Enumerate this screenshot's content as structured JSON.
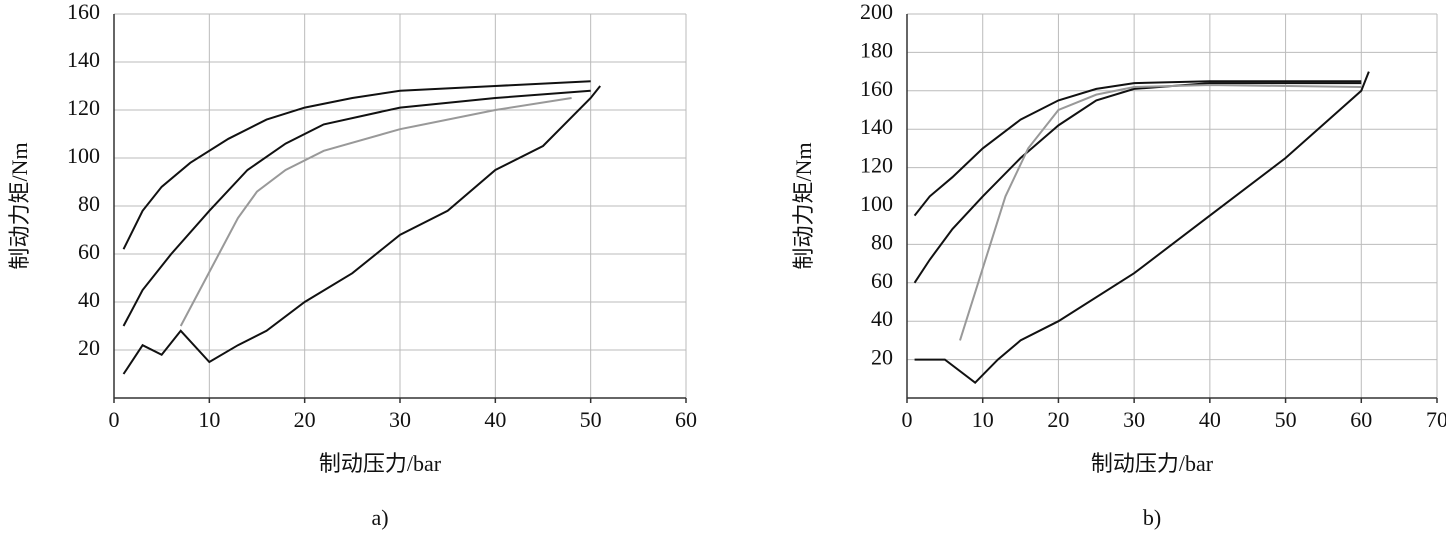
{
  "chart_data": [
    {
      "type": "line",
      "x_label": "制动压力/bar",
      "y_label": "制动力矩/Nm",
      "caption": "a)",
      "xlim": [
        0,
        60
      ],
      "ylim": [
        0,
        160
      ],
      "xticks": [
        0,
        10,
        20,
        30,
        40,
        50,
        60
      ],
      "yticks": [
        20,
        40,
        60,
        80,
        100,
        120,
        140,
        160
      ],
      "grid": true,
      "series": [
        {
          "color": "#111111",
          "x": [
            1,
            3,
            5,
            8,
            12,
            16,
            20,
            25,
            30,
            40,
            50
          ],
          "values": [
            62,
            78,
            88,
            98,
            108,
            116,
            121,
            125,
            128,
            130,
            132
          ]
        },
        {
          "color": "#111111",
          "x": [
            1,
            3,
            6,
            10,
            14,
            18,
            22,
            30,
            40,
            50
          ],
          "values": [
            30,
            45,
            60,
            78,
            95,
            106,
            114,
            121,
            125,
            128
          ]
        },
        {
          "color": "#999999",
          "x": [
            7,
            9,
            11,
            13,
            15,
            18,
            22,
            30,
            40,
            48
          ],
          "values": [
            30,
            45,
            60,
            75,
            86,
            95,
            103,
            112,
            120,
            125
          ]
        },
        {
          "color": "#111111",
          "x": [
            1,
            3,
            5,
            7,
            10,
            13,
            16,
            20,
            25,
            30,
            35,
            40,
            45,
            50,
            51
          ],
          "values": [
            10,
            22,
            18,
            28,
            15,
            22,
            28,
            40,
            52,
            68,
            78,
            95,
            105,
            125,
            130
          ]
        }
      ]
    },
    {
      "type": "line",
      "x_label": "制动压力/bar",
      "y_label": "制动力矩/Nm",
      "caption": "b)",
      "xlim": [
        0,
        70
      ],
      "ylim": [
        0,
        200
      ],
      "xticks": [
        0,
        10,
        20,
        30,
        40,
        50,
        60,
        70
      ],
      "yticks": [
        20,
        40,
        60,
        80,
        100,
        120,
        140,
        160,
        180,
        200
      ],
      "grid": true,
      "series": [
        {
          "color": "#111111",
          "x": [
            1,
            3,
            6,
            10,
            15,
            20,
            25,
            30,
            40,
            60
          ],
          "values": [
            95,
            105,
            115,
            130,
            145,
            155,
            161,
            164,
            165,
            165
          ]
        },
        {
          "color": "#111111",
          "x": [
            1,
            3,
            6,
            10,
            15,
            20,
            25,
            30,
            40,
            60
          ],
          "values": [
            60,
            72,
            88,
            105,
            125,
            142,
            155,
            161,
            164,
            164
          ]
        },
        {
          "color": "#999999",
          "x": [
            7,
            9,
            11,
            13,
            16,
            20,
            25,
            30,
            40,
            60
          ],
          "values": [
            30,
            55,
            80,
            105,
            130,
            150,
            158,
            162,
            163,
            162
          ]
        },
        {
          "color": "#111111",
          "x": [
            1,
            5,
            9,
            12,
            15,
            20,
            30,
            40,
            50,
            60,
            61
          ],
          "values": [
            20,
            20,
            8,
            20,
            30,
            40,
            65,
            95,
            125,
            160,
            170
          ]
        }
      ]
    }
  ]
}
